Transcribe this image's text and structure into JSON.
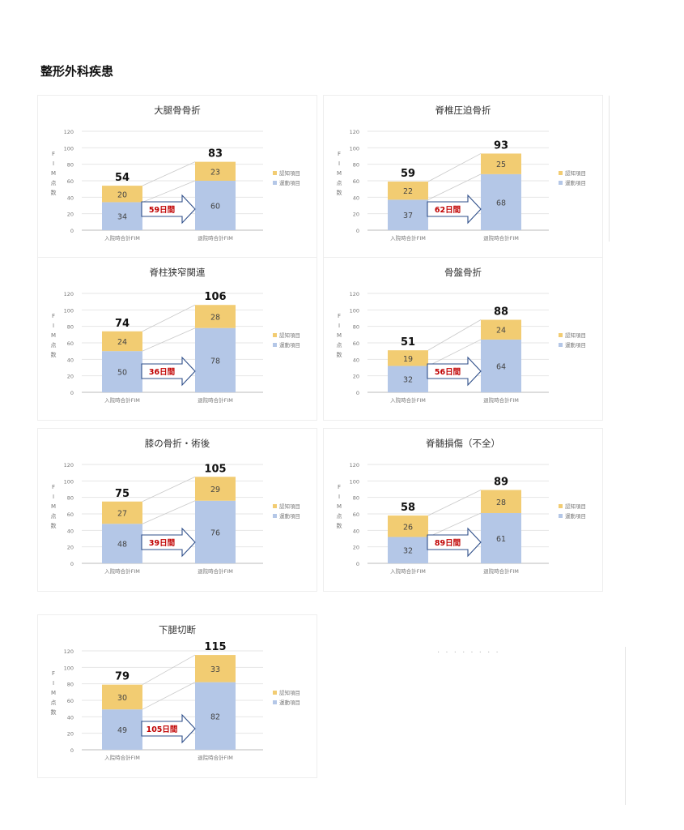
{
  "page": {
    "title": "整形外科疾患"
  },
  "chart_common": {
    "type": "bar",
    "stacked": true,
    "x_categories": [
      "入院時合計FIM",
      "退院時合計FIM"
    ],
    "ylabel": "FIM点数",
    "ylim": [
      0,
      120
    ],
    "yticks": [
      0,
      20,
      40,
      60,
      80,
      100,
      120
    ],
    "legend": [
      "認知項目",
      "運動項目"
    ],
    "legend_position": "right",
    "colors": {
      "motor": "#b4c7e7",
      "cognitive": "#f2cc72",
      "arrow_text": "#c00000",
      "arrow_stroke": "#2f4f8a"
    }
  },
  "chart_data": [
    {
      "type": "bar",
      "title": "大腿骨骨折",
      "categories": [
        "入院時合計FIM",
        "退院時合計FIM"
      ],
      "series": [
        {
          "name": "運動項目",
          "values": [
            34,
            60
          ]
        },
        {
          "name": "認知項目",
          "values": [
            20,
            23
          ]
        }
      ],
      "totals": [
        54,
        83
      ],
      "duration": "59日間",
      "ylim": [
        0,
        120
      ]
    },
    {
      "type": "bar",
      "title": "脊椎圧迫骨折",
      "categories": [
        "入院時合計FIM",
        "退院時合計FIM"
      ],
      "series": [
        {
          "name": "運動項目",
          "values": [
            37,
            68
          ]
        },
        {
          "name": "認知項目",
          "values": [
            22,
            25
          ]
        }
      ],
      "totals": [
        59,
        93
      ],
      "duration": "62日間",
      "ylim": [
        0,
        120
      ]
    },
    {
      "type": "bar",
      "title": "脊柱狭窄関連",
      "categories": [
        "入院時合計FIM",
        "退院時合計FIM"
      ],
      "series": [
        {
          "name": "運動項目",
          "values": [
            50,
            78
          ]
        },
        {
          "name": "認知項目",
          "values": [
            24,
            28
          ]
        }
      ],
      "totals": [
        74,
        106
      ],
      "duration": "36日間",
      "ylim": [
        0,
        120
      ]
    },
    {
      "type": "bar",
      "title": "骨盤骨折",
      "categories": [
        "入院時合計FIM",
        "退院時合計FIM"
      ],
      "series": [
        {
          "name": "運動項目",
          "values": [
            32,
            64
          ]
        },
        {
          "name": "認知項目",
          "values": [
            19,
            24
          ]
        }
      ],
      "totals": [
        51,
        88
      ],
      "duration": "56日間",
      "ylim": [
        0,
        120
      ]
    },
    {
      "type": "bar",
      "title": "膝の骨折・術後",
      "categories": [
        "入院時合計FIM",
        "退院時合計FIM"
      ],
      "series": [
        {
          "name": "運動項目",
          "values": [
            48,
            76
          ]
        },
        {
          "name": "認知項目",
          "values": [
            27,
            29
          ]
        }
      ],
      "totals": [
        75,
        105
      ],
      "duration": "39日間",
      "ylim": [
        0,
        120
      ]
    },
    {
      "type": "bar",
      "title": "脊髄損傷（不全）",
      "categories": [
        "入院時合計FIM",
        "退院時合計FIM"
      ],
      "series": [
        {
          "name": "運動項目",
          "values": [
            32,
            61
          ]
        },
        {
          "name": "認知項目",
          "values": [
            26,
            28
          ]
        }
      ],
      "totals": [
        58,
        89
      ],
      "duration": "89日間",
      "ylim": [
        0,
        120
      ]
    },
    {
      "type": "bar",
      "title": "下腿切断",
      "categories": [
        "入院時合計FIM",
        "退院時合計FIM"
      ],
      "series": [
        {
          "name": "運動項目",
          "values": [
            49,
            82
          ]
        },
        {
          "name": "認知項目",
          "values": [
            30,
            33
          ]
        }
      ],
      "totals": [
        79,
        115
      ],
      "duration": "105日間",
      "ylim": [
        0,
        120
      ]
    }
  ]
}
